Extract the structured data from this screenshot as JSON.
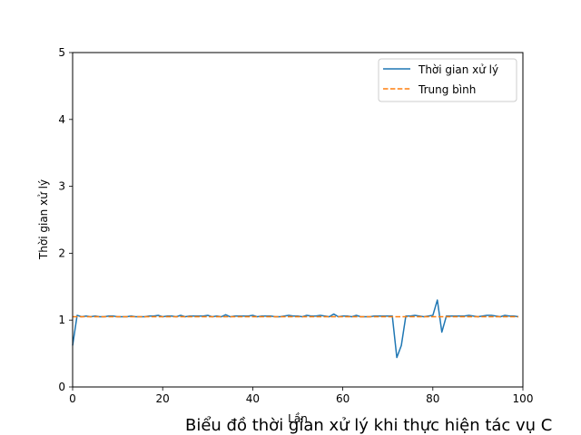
{
  "chart_data": {
    "type": "line",
    "title": "Biểu đồ thời gian xử lý khi thực hiện tác vụ C",
    "xlabel": "Lần",
    "ylabel": "Thời gian xử lý",
    "xlim": [
      0,
      100
    ],
    "ylim": [
      0,
      5
    ],
    "xticks": [
      0,
      20,
      40,
      60,
      80,
      100
    ],
    "yticks": [
      0,
      1,
      2,
      3,
      4,
      5
    ],
    "grid": false,
    "legend_position": "top-right",
    "series": [
      {
        "name": "Thời gian xử lý",
        "color": "#1f77b4",
        "style": "solid",
        "x": [
          0,
          1,
          2,
          3,
          4,
          5,
          6,
          7,
          8,
          9,
          10,
          11,
          12,
          13,
          14,
          15,
          16,
          17,
          18,
          19,
          20,
          21,
          22,
          23,
          24,
          25,
          26,
          27,
          28,
          29,
          30,
          31,
          32,
          33,
          34,
          35,
          36,
          37,
          38,
          39,
          40,
          41,
          42,
          43,
          44,
          45,
          46,
          47,
          48,
          49,
          50,
          51,
          52,
          53,
          54,
          55,
          56,
          57,
          58,
          59,
          60,
          61,
          62,
          63,
          64,
          65,
          66,
          67,
          68,
          69,
          70,
          71,
          72,
          73,
          74,
          75,
          76,
          77,
          78,
          79,
          80,
          81,
          82,
          83,
          84,
          85,
          86,
          87,
          88,
          89,
          90,
          91,
          92,
          93,
          94,
          95,
          96,
          97,
          98,
          99
        ],
        "y": [
          0.62,
          1.07,
          1.05,
          1.06,
          1.05,
          1.06,
          1.05,
          1.05,
          1.06,
          1.06,
          1.05,
          1.05,
          1.05,
          1.06,
          1.05,
          1.05,
          1.05,
          1.06,
          1.06,
          1.07,
          1.05,
          1.06,
          1.06,
          1.05,
          1.07,
          1.05,
          1.06,
          1.06,
          1.06,
          1.06,
          1.07,
          1.05,
          1.06,
          1.05,
          1.08,
          1.05,
          1.06,
          1.06,
          1.06,
          1.06,
          1.07,
          1.05,
          1.06,
          1.06,
          1.06,
          1.05,
          1.05,
          1.06,
          1.07,
          1.06,
          1.06,
          1.05,
          1.07,
          1.06,
          1.06,
          1.07,
          1.06,
          1.05,
          1.09,
          1.05,
          1.06,
          1.06,
          1.05,
          1.07,
          1.05,
          1.05,
          1.05,
          1.06,
          1.06,
          1.06,
          1.06,
          1.06,
          0.44,
          0.62,
          1.06,
          1.06,
          1.07,
          1.06,
          1.05,
          1.06,
          1.07,
          1.3,
          0.82,
          1.06,
          1.06,
          1.06,
          1.06,
          1.06,
          1.07,
          1.06,
          1.05,
          1.06,
          1.07,
          1.07,
          1.06,
          1.05,
          1.07,
          1.06,
          1.06,
          1.05
        ]
      },
      {
        "name": "Trung bình",
        "color": "#ff7f0e",
        "style": "dashed",
        "x": [
          0,
          99
        ],
        "y": [
          1.05,
          1.05
        ]
      }
    ]
  }
}
